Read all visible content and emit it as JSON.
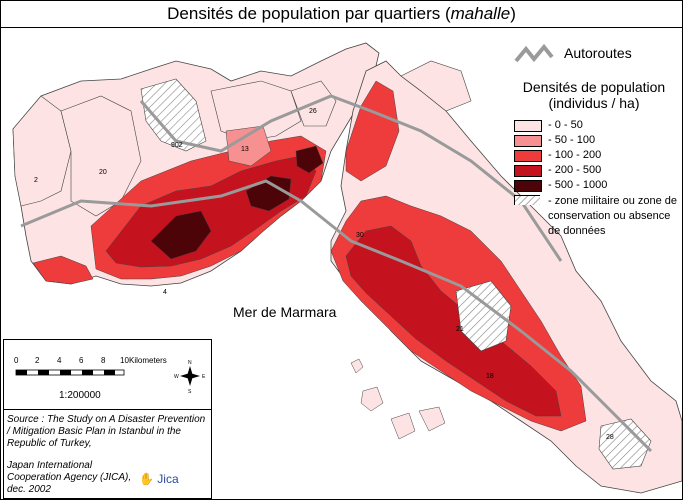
{
  "title": {
    "main": "Densités de population par quartiers (",
    "italic": "mahalle",
    "end": ")"
  },
  "legend": {
    "autoroute_label": "Autoroutes",
    "title_line1": "Densités de population",
    "title_line2": "(individus / ha)",
    "classes": [
      {
        "label": "- 0 - 50",
        "color": "#fde3e3"
      },
      {
        "label": "- 50 - 100",
        "color": "#f79090"
      },
      {
        "label": "- 100 - 200",
        "color": "#ee3b3b"
      },
      {
        "label": "- 200 - 500",
        "color": "#c4121e"
      },
      {
        "label": "- 500 - 1000",
        "color": "#4d0408"
      }
    ],
    "hatched_label": "- zone militaire ou zone de conservation ou absence de données"
  },
  "sea_label": "Mer de Marmara",
  "district_numbers": [
    "902",
    "13",
    "26",
    "20",
    "2",
    "30",
    "28",
    "18",
    "21",
    "4"
  ],
  "scale": {
    "ticks": [
      "0",
      "2",
      "4",
      "6",
      "8",
      "10"
    ],
    "unit": "Kilometers",
    "ratio": "1:200000",
    "compass": {
      "n": "N",
      "s": "S",
      "e": "E",
      "w": "W"
    }
  },
  "source": {
    "line1": "Source : The Study on A Disaster Prevention / Mitigation Basic Plan in Istanbul in the Republic of Turkey,",
    "line2": "Japan International Cooperation Agency (JICA), dec. 2002",
    "logo": "Jica"
  },
  "colors": {
    "low": "#fde3e3",
    "mid_low": "#f79090",
    "mid": "#ee3b3b",
    "high": "#c4121e",
    "very_high": "#4d0408",
    "road": "#9a9a9a",
    "border": "#444444"
  }
}
